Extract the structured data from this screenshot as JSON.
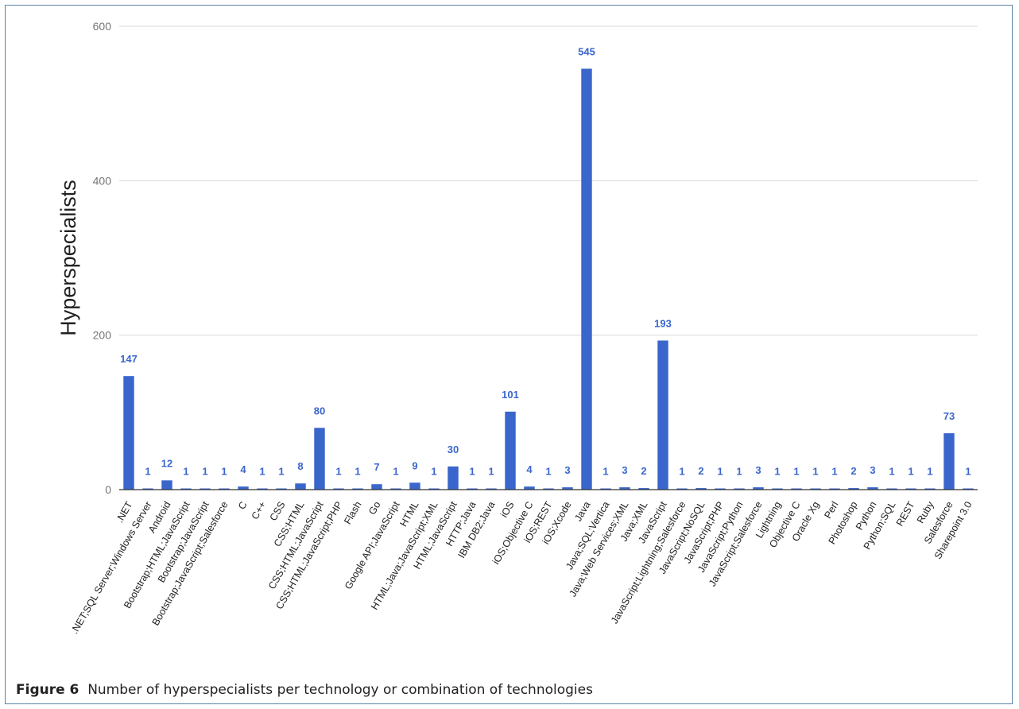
{
  "chart_data": {
    "type": "bar",
    "ylabel": "Hyperspecialists",
    "xlabel": "",
    "ylim": [
      0,
      600
    ],
    "yticks": [
      0,
      200,
      400,
      600
    ],
    "grid": true,
    "bar_color": "#3a66cc",
    "label_color": "#3a66cc",
    "categories": [
      ".NET",
      ".NET;SQL Server;Windows Server",
      "Android",
      "Bootstrap;HTML;JavaScript",
      "Bootstrap;JavaScript",
      "Bootstrap;JavaScript;Salesforce",
      "C",
      "C++",
      "CSS",
      "CSS;HTML",
      "CSS;HTML;JavaScript",
      "CSS;HTML;JavaScript;PHP",
      "Flash",
      "Go",
      "Google API;JavaScript",
      "HTML",
      "HTML;Java;JavaScript;XML",
      "HTML;JavaScript",
      "HTTP;Java",
      "IBM DB2;Java",
      "iOS",
      "iOS;Objective C",
      "iOS;REST",
      "iOS;Xcode",
      "Java",
      "Java;SQL;Vertica",
      "Java;Web Services;XML",
      "Java;XML",
      "JavaScript",
      "JavaScript;Lightning;Salesforce",
      "JavaScript;NoSQL",
      "JavaScript;PHP",
      "JavaScript;Python",
      "JavaScript;Salesforce",
      "Lightning",
      "Objective C",
      "Oracle Xg",
      "Perl",
      "Photoshop",
      "Python",
      "Python;SQL",
      "REST",
      "Ruby",
      "Salesforce",
      "Sharepoint 3.0"
    ],
    "values": [
      147,
      1,
      12,
      1,
      1,
      1,
      4,
      1,
      1,
      8,
      80,
      1,
      1,
      7,
      1,
      9,
      1,
      30,
      1,
      1,
      101,
      4,
      1,
      3,
      545,
      1,
      3,
      2,
      193,
      1,
      2,
      1,
      1,
      3,
      1,
      1,
      1,
      1,
      2,
      3,
      1,
      1,
      1,
      73,
      1
    ]
  },
  "caption": {
    "label": "Figure 6",
    "text": "Number of hyperspecialists per technology or combination of technologies"
  }
}
